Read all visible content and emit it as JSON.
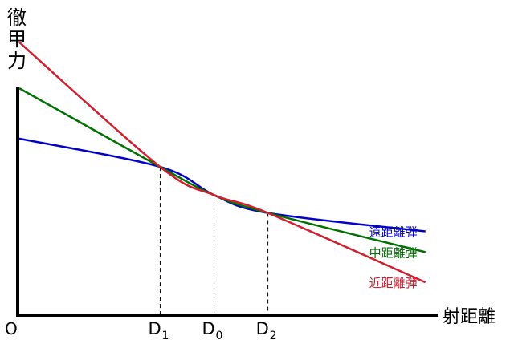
{
  "chart_data": {
    "type": "line",
    "ylabel": "徹甲力",
    "xlabel": "射距離",
    "origin_label": "O",
    "xlim": [
      0,
      100
    ],
    "ylim": [
      0,
      100
    ],
    "ticks": [
      {
        "name": "d1",
        "main": "D",
        "sub": "1",
        "x": 34.0
      },
      {
        "name": "d0",
        "main": "D",
        "sub": "0",
        "x": 47.0
      },
      {
        "name": "d2",
        "main": "D",
        "sub": "2",
        "x": 60.0
      }
    ],
    "series": [
      {
        "name": "遠距離弾",
        "color": "#0000c8",
        "y0": 61.3,
        "intersections": [
          [
            34.0,
            51.5
          ],
          [
            47.0,
            41.7
          ],
          [
            60.0,
            35.5
          ]
        ],
        "y_end": 29.1
      },
      {
        "name": "中距離弾",
        "color": "#007000",
        "y0": 78.8,
        "intersections": [
          [
            34.0,
            51.5
          ],
          [
            47.0,
            41.7
          ],
          [
            60.0,
            35.5
          ]
        ],
        "y_end": 21.9
      },
      {
        "name": "近距離弾",
        "color": "#d02030",
        "y0": 94.8,
        "intersections": [
          [
            34.0,
            51.5
          ],
          [
            47.0,
            41.7
          ],
          [
            60.0,
            35.5
          ]
        ],
        "y_end": 11.4
      }
    ],
    "axis_end_x": 98,
    "grid": false,
    "legend": "right (labels at line ends)"
  }
}
